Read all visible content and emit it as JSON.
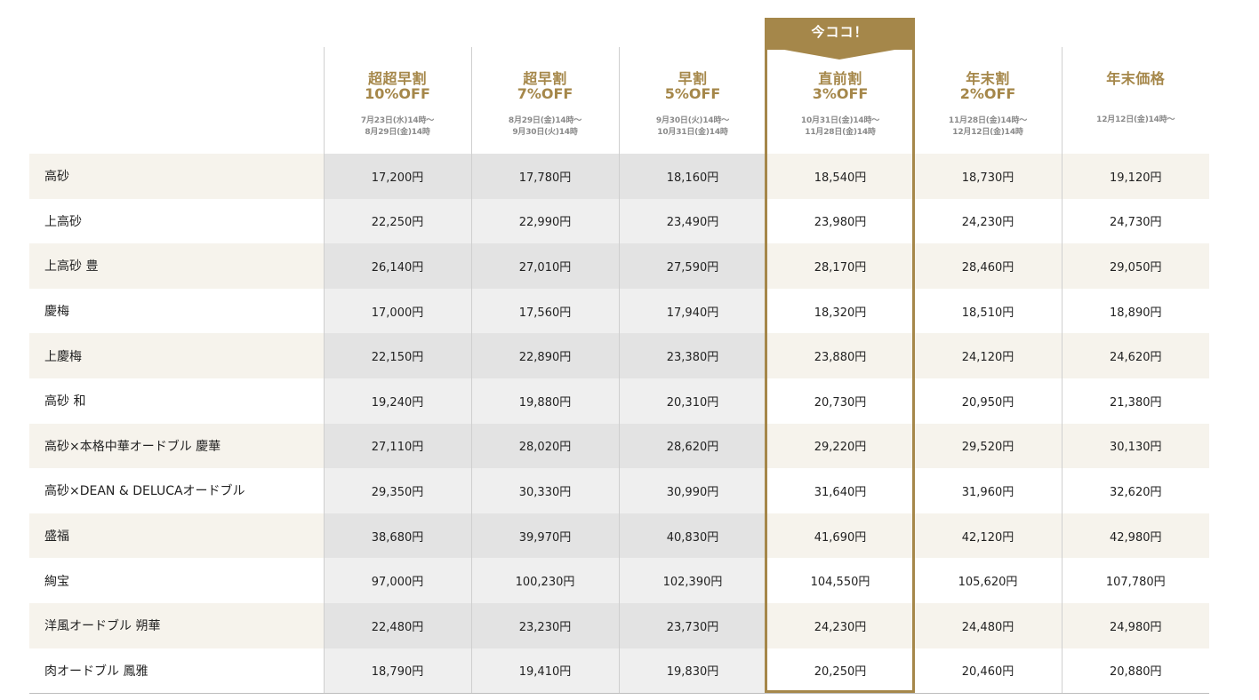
{
  "badge": "今ココ！",
  "plans": [
    {
      "name": "超超早割",
      "off": "10%OFF",
      "date1": "7月23日(水)14時〜",
      "date2": "8月29日(金)14時"
    },
    {
      "name": "超早割",
      "off": "7%OFF",
      "date1": "8月29日(金)14時〜",
      "date2": "9月30日(火)14時"
    },
    {
      "name": "早割",
      "off": "5%OFF",
      "date1": "9月30日(火)14時〜",
      "date2": "10月31日(金)14時"
    },
    {
      "name": "直前割",
      "off": "3%OFF",
      "date1": "10月31日(金)14時〜",
      "date2": "11月28日(金)14時"
    },
    {
      "name": "年末割",
      "off": "2%OFF",
      "date1": "11月28日(金)14時〜",
      "date2": "12月12日(金)14時"
    },
    {
      "name": "年末価格",
      "off": "",
      "date1": "12月12日(金)14時〜",
      "date2": ""
    }
  ],
  "rows": [
    {
      "name": "高砂",
      "prices": [
        "17,200円",
        "17,780円",
        "18,160円",
        "18,540円",
        "18,730円",
        "19,120円"
      ]
    },
    {
      "name": "上高砂",
      "prices": [
        "22,250円",
        "22,990円",
        "23,490円",
        "23,980円",
        "24,230円",
        "24,730円"
      ]
    },
    {
      "name": "上高砂 豊",
      "prices": [
        "26,140円",
        "27,010円",
        "27,590円",
        "28,170円",
        "28,460円",
        "29,050円"
      ]
    },
    {
      "name": "慶梅",
      "prices": [
        "17,000円",
        "17,560円",
        "17,940円",
        "18,320円",
        "18,510円",
        "18,890円"
      ]
    },
    {
      "name": "上慶梅",
      "prices": [
        "22,150円",
        "22,890円",
        "23,380円",
        "23,880円",
        "24,120円",
        "24,620円"
      ]
    },
    {
      "name": "高砂 和",
      "prices": [
        "19,240円",
        "19,880円",
        "20,310円",
        "20,730円",
        "20,950円",
        "21,380円"
      ]
    },
    {
      "name": "高砂×本格中華オードブル 慶華",
      "prices": [
        "27,110円",
        "28,020円",
        "28,620円",
        "29,220円",
        "29,520円",
        "30,130円"
      ]
    },
    {
      "name": "高砂×DEAN & DELUCAオードブル",
      "prices": [
        "29,350円",
        "30,330円",
        "30,990円",
        "31,640円",
        "31,960円",
        "32,620円"
      ]
    },
    {
      "name": "盛福",
      "prices": [
        "38,680円",
        "39,970円",
        "40,830円",
        "41,690円",
        "42,120円",
        "42,980円"
      ]
    },
    {
      "name": "絢宝",
      "prices": [
        "97,000円",
        "100,230円",
        "102,390円",
        "104,550円",
        "105,620円",
        "107,780円"
      ]
    },
    {
      "name": "洋風オードブル 朔華",
      "prices": [
        "22,480円",
        "23,230円",
        "23,730円",
        "24,230円",
        "24,480円",
        "24,980円"
      ]
    },
    {
      "name": "肉オードブル 鳳雅",
      "prices": [
        "18,790円",
        "19,410円",
        "19,830円",
        "20,250円",
        "20,460円",
        "20,880円"
      ]
    }
  ],
  "colors": {
    "accent": "#a5874a",
    "row_alt": "#f6f3ec",
    "gray_col": "#e3e3e3"
  }
}
